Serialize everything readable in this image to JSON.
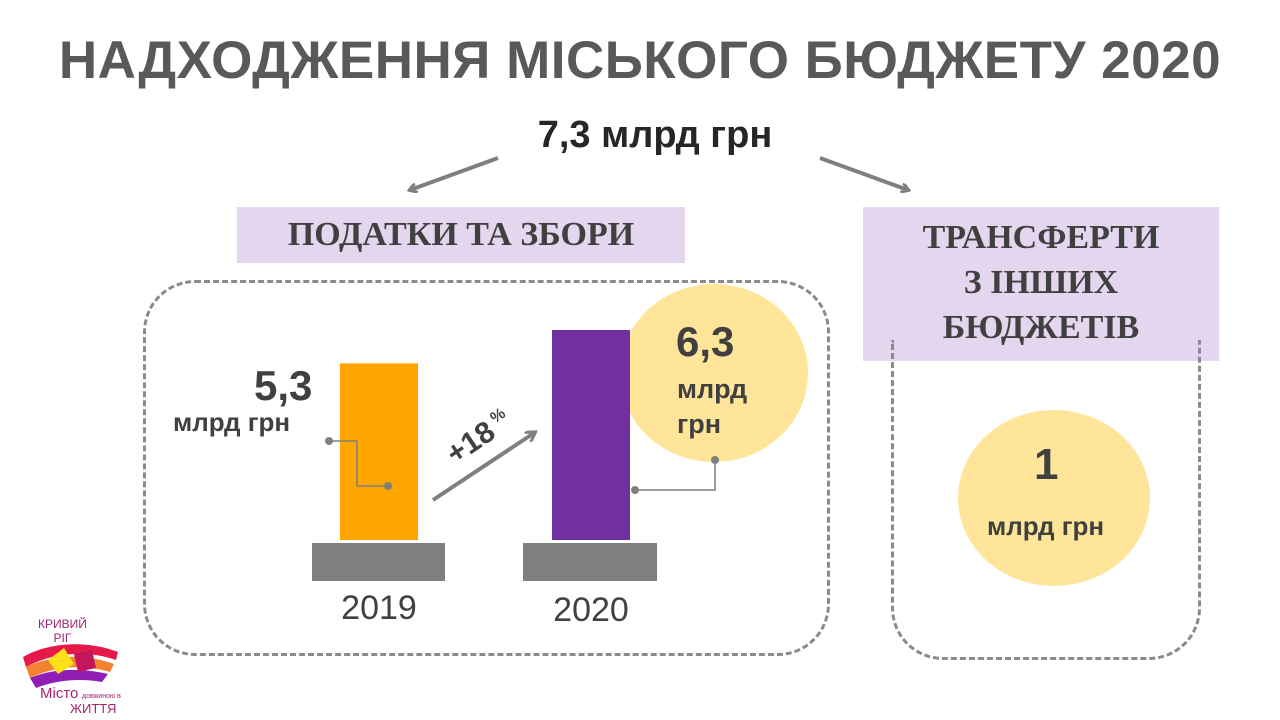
{
  "title": "НАДХОДЖЕННЯ МІСЬКОГО БЮДЖЕТУ 2020",
  "total": "7,3 млрд грн",
  "taxes": {
    "label": "ПОДАТКИ ТА ЗБОРИ",
    "growth": "+18",
    "growth_unit": "%"
  },
  "transfers": {
    "label_lines": [
      "ТРАНСФЕРТИ",
      "З  ІНШИХ",
      "БЮДЖЕТІВ"
    ],
    "value": "1",
    "unit": "млрд грн"
  },
  "chart_data": {
    "type": "bar",
    "categories": [
      "2019",
      "2020"
    ],
    "values": [
      5.3,
      6.3
    ],
    "value_labels": [
      "5,3",
      "6,3"
    ],
    "unit": "млрд грн",
    "colors": [
      "#ffa500",
      "#7030a0"
    ]
  },
  "logo": {
    "line1": "КРИВИЙ",
    "line2": "РІГ",
    "line3": "Місто",
    "line4": "довжиною в",
    "line5": "ЖИТТЯ"
  }
}
